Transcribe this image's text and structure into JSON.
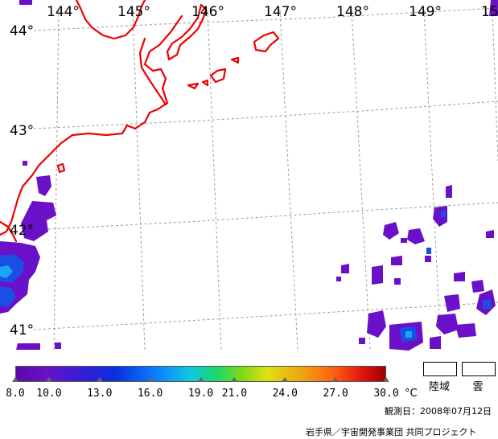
{
  "map": {
    "longitude_labels": [
      "144°",
      "145°",
      "146°",
      "147°",
      "148°",
      "149°",
      "15"
    ],
    "latitude_labels": [
      "44°",
      "43°",
      "42°",
      "41°"
    ],
    "colors": {
      "coastline": "#ee0000",
      "grid": "#9a9a9a",
      "sst_low": "#6a10c8",
      "sst_mid": "#1a4fe6",
      "sst_high": "#1aa6f0"
    }
  },
  "legend": {
    "scale_min": 8.0,
    "scale_max": 30.0,
    "tick_labels": [
      "8.0",
      "10.0",
      "13.0",
      "16.0",
      "19.0",
      "21.0",
      "24.0",
      "27.0",
      "30.0"
    ],
    "tick_values": [
      8.0,
      10.0,
      13.0,
      16.0,
      19.0,
      21.0,
      24.0,
      27.0,
      30.0
    ],
    "unit": "°C",
    "land_label": "陸域",
    "cloud_label": "雲"
  },
  "observation_date": "観測日：2008年07月12日",
  "credit": "岩手県／宇宙開発事業団 共同プロジェクト"
}
